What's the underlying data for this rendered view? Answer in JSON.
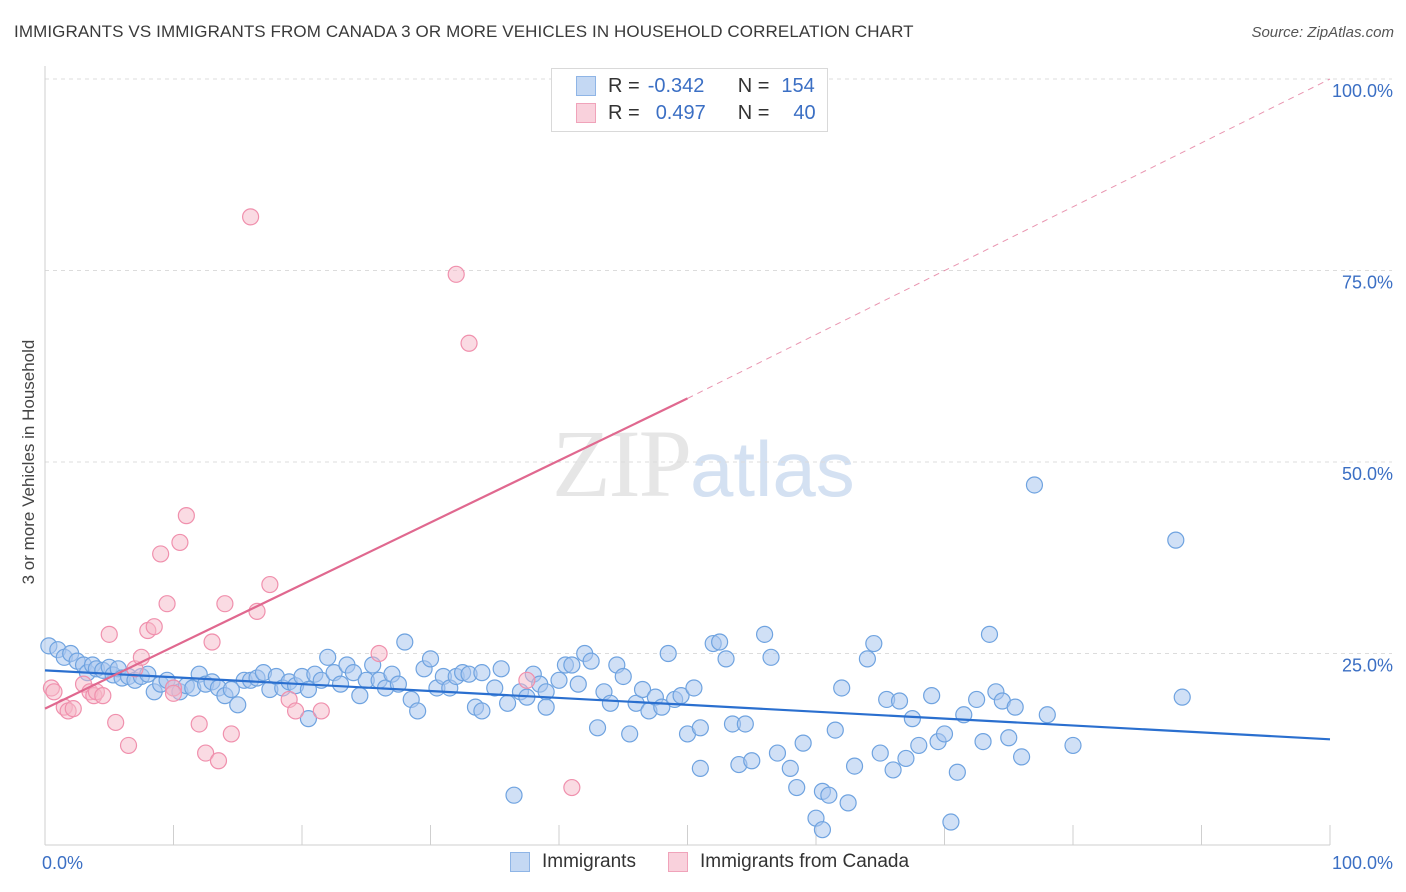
{
  "header": {
    "title": "IMMIGRANTS VS IMMIGRANTS FROM CANADA 3 OR MORE VEHICLES IN HOUSEHOLD CORRELATION CHART",
    "source": "Source: ZipAtlas.com"
  },
  "watermark": {
    "zip": "ZIP",
    "atlas": "atlas"
  },
  "legend": {
    "rows": [
      {
        "r_label": "R =",
        "r_value": "-0.342",
        "n_label": "N =",
        "n_value": "154",
        "color": "#a9c7ee"
      },
      {
        "r_label": "R =",
        "r_value": "0.497",
        "n_label": "N =",
        "n_value": "40",
        "color": "#f5b8c8"
      }
    ]
  },
  "bottom_legend": [
    {
      "label": "Immigrants",
      "color": "#a9c7ee"
    },
    {
      "label": "Immigrants from Canada",
      "color": "#f5b8c8"
    }
  ],
  "chart_data": {
    "type": "scatter",
    "ylabel": "3 or more Vehicles in Household",
    "xlim": [
      0,
      100
    ],
    "ylim": [
      0,
      100
    ],
    "x_tick_labels": [
      "0.0%",
      "100.0%"
    ],
    "y_tick_labels": [
      "25.0%",
      "50.0%",
      "75.0%",
      "100.0%"
    ],
    "y_ticks": [
      25,
      50,
      75,
      100
    ],
    "grid": "horizontal dashed",
    "colors": {
      "blue": "#6fa3e0",
      "blue_fill": "#a9c7ee",
      "blue_line": "#2a6fcf",
      "pink": "#f090ad",
      "pink_fill": "#f5b8c8",
      "pink_line": "#e0688f",
      "tick_text": "#3b6fc4"
    },
    "series": [
      {
        "name": "Immigrants",
        "trend": {
          "x": [
            0,
            100
          ],
          "y": [
            22.8,
            13.8
          ]
        },
        "points": [
          [
            0.3,
            26
          ],
          [
            1,
            25.5
          ],
          [
            1.5,
            24.5
          ],
          [
            2,
            25
          ],
          [
            2.5,
            24
          ],
          [
            3,
            23.5
          ],
          [
            3.3,
            22.5
          ],
          [
            3.7,
            23.5
          ],
          [
            4,
            23
          ],
          [
            4.5,
            22.8
          ],
          [
            5,
            23.2
          ],
          [
            5.3,
            22.2
          ],
          [
            5.7,
            23
          ],
          [
            6,
            21.8
          ],
          [
            6.5,
            22
          ],
          [
            7,
            21.5
          ],
          [
            7.5,
            22
          ],
          [
            8,
            22.3
          ],
          [
            8.5,
            20
          ],
          [
            9,
            21
          ],
          [
            9.5,
            21.5
          ],
          [
            10,
            20.5
          ],
          [
            10.5,
            20
          ],
          [
            11,
            20.8
          ],
          [
            11.5,
            20.5
          ],
          [
            12,
            22.3
          ],
          [
            12.5,
            21
          ],
          [
            13,
            21.3
          ],
          [
            13.5,
            20.5
          ],
          [
            14,
            19.5
          ],
          [
            14.5,
            20.3
          ],
          [
            15,
            18.3
          ],
          [
            15.5,
            21.5
          ],
          [
            16,
            21.5
          ],
          [
            16.5,
            21.8
          ],
          [
            17,
            22.5
          ],
          [
            17.5,
            20.3
          ],
          [
            18,
            22
          ],
          [
            18.5,
            20.5
          ],
          [
            19,
            21.3
          ],
          [
            19.5,
            20.8
          ],
          [
            20,
            22
          ],
          [
            20.5,
            20.3
          ],
          [
            20.5,
            16.5
          ],
          [
            21,
            22.3
          ],
          [
            21.5,
            21.5
          ],
          [
            22,
            24.5
          ],
          [
            22.5,
            22.5
          ],
          [
            23,
            21
          ],
          [
            23.5,
            23.5
          ],
          [
            24,
            22.5
          ],
          [
            24.5,
            19.5
          ],
          [
            25,
            21.5
          ],
          [
            25.5,
            23.5
          ],
          [
            26,
            21.5
          ],
          [
            26.5,
            20.5
          ],
          [
            27,
            22.3
          ],
          [
            27.5,
            21
          ],
          [
            28,
            26.5
          ],
          [
            28.5,
            19
          ],
          [
            29,
            17.5
          ],
          [
            29.5,
            23
          ],
          [
            30,
            24.3
          ],
          [
            30.5,
            20.5
          ],
          [
            31,
            22
          ],
          [
            31.5,
            20.5
          ],
          [
            32,
            22
          ],
          [
            32.5,
            22.5
          ],
          [
            33,
            22.3
          ],
          [
            33.5,
            18
          ],
          [
            34,
            22.5
          ],
          [
            34,
            17.5
          ],
          [
            35,
            20.5
          ],
          [
            35.5,
            23
          ],
          [
            36,
            18.5
          ],
          [
            36.5,
            6.5
          ],
          [
            37,
            20
          ],
          [
            37.5,
            19.3
          ],
          [
            38,
            22.3
          ],
          [
            38.5,
            21
          ],
          [
            39,
            20
          ],
          [
            39,
            18
          ],
          [
            40,
            21.5
          ],
          [
            40.5,
            23.5
          ],
          [
            41,
            23.5
          ],
          [
            41.5,
            21
          ],
          [
            42,
            25
          ],
          [
            42.5,
            24
          ],
          [
            43,
            15.3
          ],
          [
            43.5,
            20
          ],
          [
            44,
            18.5
          ],
          [
            44.5,
            23.5
          ],
          [
            45,
            22
          ],
          [
            45.5,
            14.5
          ],
          [
            46,
            18.5
          ],
          [
            46.5,
            20.3
          ],
          [
            47,
            17.5
          ],
          [
            47.5,
            19.3
          ],
          [
            48,
            18
          ],
          [
            48.5,
            25
          ],
          [
            49,
            19
          ],
          [
            49.5,
            19.5
          ],
          [
            50,
            14.5
          ],
          [
            50.5,
            20.5
          ],
          [
            51,
            15.3
          ],
          [
            51,
            10
          ],
          [
            52,
            26.3
          ],
          [
            52.5,
            26.5
          ],
          [
            53,
            24.3
          ],
          [
            53.5,
            15.8
          ],
          [
            54,
            10.5
          ],
          [
            54.5,
            15.8
          ],
          [
            55,
            11
          ],
          [
            56,
            27.5
          ],
          [
            56.5,
            24.5
          ],
          [
            57,
            12
          ],
          [
            58,
            10
          ],
          [
            58.5,
            7.5
          ],
          [
            59,
            13.3
          ],
          [
            60,
            3.5
          ],
          [
            60.5,
            2
          ],
          [
            60.5,
            7
          ],
          [
            61,
            6.5
          ],
          [
            61.5,
            15
          ],
          [
            62,
            20.5
          ],
          [
            62.5,
            5.5
          ],
          [
            63,
            10.3
          ],
          [
            64,
            24.3
          ],
          [
            64.5,
            26.3
          ],
          [
            65,
            12
          ],
          [
            65.5,
            19
          ],
          [
            66,
            9.8
          ],
          [
            66.5,
            18.8
          ],
          [
            67,
            11.3
          ],
          [
            67.5,
            16.5
          ],
          [
            68,
            13
          ],
          [
            69,
            19.5
          ],
          [
            69.5,
            13.5
          ],
          [
            70,
            14.5
          ],
          [
            70.5,
            3
          ],
          [
            71,
            9.5
          ],
          [
            71.5,
            17
          ],
          [
            72.5,
            19
          ],
          [
            73,
            13.5
          ],
          [
            73.5,
            27.5
          ],
          [
            74,
            20
          ],
          [
            74.5,
            18.8
          ],
          [
            75,
            14
          ],
          [
            75.5,
            18
          ],
          [
            76,
            11.5
          ],
          [
            77,
            47
          ],
          [
            78,
            17
          ],
          [
            80,
            13
          ],
          [
            88,
            39.8
          ],
          [
            88.5,
            19.3
          ]
        ]
      },
      {
        "name": "Immigrants from Canada",
        "trend": {
          "x": [
            0,
            50
          ],
          "y": [
            17.8,
            58.3
          ],
          "dashed_extension": {
            "x": [
              50,
              100
            ],
            "y": [
              58.3,
              100
            ]
          }
        },
        "points": [
          [
            0.5,
            20.5
          ],
          [
            0.7,
            20
          ],
          [
            1.5,
            18
          ],
          [
            1.8,
            17.5
          ],
          [
            2.2,
            17.8
          ],
          [
            3,
            21
          ],
          [
            3.5,
            20
          ],
          [
            3.8,
            19.5
          ],
          [
            4,
            20
          ],
          [
            4.5,
            19.5
          ],
          [
            5,
            27.5
          ],
          [
            5.5,
            16
          ],
          [
            6.5,
            13
          ],
          [
            7,
            23
          ],
          [
            7.5,
            24.5
          ],
          [
            8,
            28
          ],
          [
            8.5,
            28.5
          ],
          [
            9,
            38
          ],
          [
            9.5,
            31.5
          ],
          [
            10,
            20.5
          ],
          [
            10,
            19.8
          ],
          [
            10.5,
            39.5
          ],
          [
            11,
            43
          ],
          [
            12,
            15.8
          ],
          [
            12.5,
            12
          ],
          [
            13,
            26.5
          ],
          [
            13.5,
            11
          ],
          [
            14,
            31.5
          ],
          [
            14.5,
            14.5
          ],
          [
            16,
            82
          ],
          [
            16.5,
            30.5
          ],
          [
            17.5,
            34
          ],
          [
            19,
            19
          ],
          [
            19.5,
            17.5
          ],
          [
            21.5,
            17.5
          ],
          [
            26,
            25
          ],
          [
            32,
            74.5
          ],
          [
            33,
            65.5
          ],
          [
            37.5,
            21.5
          ],
          [
            41,
            7.5
          ]
        ]
      }
    ]
  }
}
